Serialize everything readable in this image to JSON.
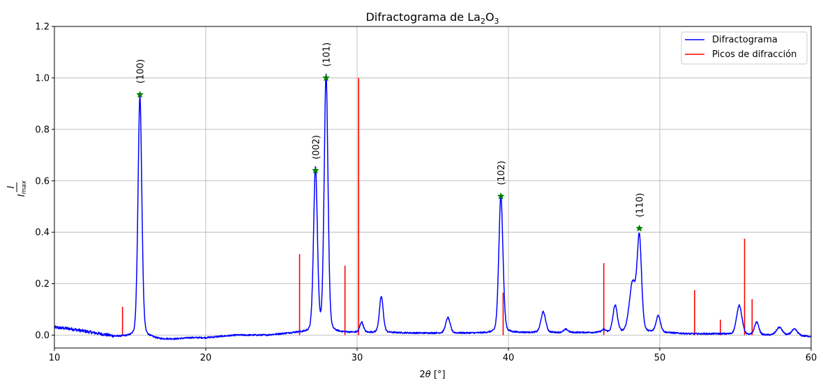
{
  "chart_data": {
    "type": "line",
    "title": "Difractograma de La",
    "title_sub1": "2",
    "title_mid": "O",
    "title_sub2": "3",
    "xlabel_theta": "θ",
    "xlabel_prefix": "2",
    "xlabel_suffix": " [°]",
    "ylabel_num": "I",
    "ylabel_den": "I",
    "ylabel_den_sub": "max",
    "xlim": [
      10,
      60
    ],
    "ylim": [
      -0.05,
      1.2
    ],
    "xticks": [
      10,
      20,
      30,
      40,
      50,
      60
    ],
    "yticks": [
      0.0,
      0.2,
      0.4,
      0.6,
      0.8,
      1.0,
      1.2
    ],
    "ytick_labels": [
      "0.0",
      "0.2",
      "0.4",
      "0.6",
      "0.8",
      "1.0",
      "1.2"
    ],
    "grid": true,
    "legend_position": "top-right",
    "colors": {
      "pattern": "#0000ff",
      "sticks": "#ff0000",
      "markers": "#008000"
    },
    "series": [
      {
        "name": "Difractograma",
        "baseline": [
          [
            10,
            0.03
          ],
          [
            11,
            0.025
          ],
          [
            12,
            0.015
          ],
          [
            13,
            0.005
          ],
          [
            14,
            -0.005
          ],
          [
            15,
            -0.005
          ],
          [
            16,
            -0.005
          ],
          [
            17,
            -0.015
          ],
          [
            18,
            -0.015
          ],
          [
            19,
            -0.01
          ],
          [
            20,
            -0.01
          ],
          [
            21,
            -0.005
          ],
          [
            22,
            0.0
          ],
          [
            23,
            0.0
          ],
          [
            24,
            0.0
          ],
          [
            25,
            0.005
          ],
          [
            26,
            0.01
          ],
          [
            27,
            0.01
          ],
          [
            28,
            0.01
          ],
          [
            29,
            0.01
          ],
          [
            30,
            0.01
          ],
          [
            32,
            0.01
          ],
          [
            34,
            0.008
          ],
          [
            36,
            0.008
          ],
          [
            38,
            0.008
          ],
          [
            40,
            0.01
          ],
          [
            42,
            0.01
          ],
          [
            44,
            0.01
          ],
          [
            46,
            0.01
          ],
          [
            48,
            0.01
          ],
          [
            50,
            0.01
          ],
          [
            52,
            0.005
          ],
          [
            54,
            0.005
          ],
          [
            56,
            0.0
          ],
          [
            58,
            0.0
          ],
          [
            60,
            -0.005
          ]
        ],
        "peaks": [
          [
            15.65,
            0.935,
            0.13
          ],
          [
            27.25,
            0.64,
            0.13
          ],
          [
            27.95,
            1.0,
            0.13
          ],
          [
            30.3,
            0.04,
            0.12
          ],
          [
            31.6,
            0.14,
            0.13
          ],
          [
            36.0,
            0.06,
            0.15
          ],
          [
            39.5,
            0.535,
            0.14
          ],
          [
            42.3,
            0.08,
            0.16
          ],
          [
            43.8,
            0.012,
            0.15
          ],
          [
            46.3,
            0.01,
            0.15
          ],
          [
            47.05,
            0.105,
            0.15
          ],
          [
            48.2,
            0.19,
            0.22
          ],
          [
            48.65,
            0.36,
            0.15
          ],
          [
            49.9,
            0.065,
            0.15
          ],
          [
            55.25,
            0.115,
            0.18
          ],
          [
            56.4,
            0.05,
            0.15
          ],
          [
            57.9,
            0.03,
            0.2
          ],
          [
            58.9,
            0.025,
            0.2
          ]
        ]
      },
      {
        "name": "Picos de difracción",
        "sticks": [
          [
            14.5,
            0.11
          ],
          [
            26.2,
            0.315
          ],
          [
            29.2,
            0.27
          ],
          [
            30.1,
            1.0
          ],
          [
            39.65,
            0.165
          ],
          [
            46.3,
            0.28
          ],
          [
            52.3,
            0.175
          ],
          [
            54.0,
            0.06
          ],
          [
            55.6,
            0.375
          ],
          [
            56.1,
            0.14
          ]
        ]
      }
    ],
    "peak_labels": [
      {
        "x": 15.65,
        "y": 0.935,
        "label": "(100)"
      },
      {
        "x": 27.25,
        "y": 0.64,
        "label": "(002)"
      },
      {
        "x": 27.95,
        "y": 1.0,
        "label": "(101)"
      },
      {
        "x": 39.5,
        "y": 0.54,
        "label": "(102)"
      },
      {
        "x": 48.65,
        "y": 0.415,
        "label": "(110)"
      }
    ]
  }
}
